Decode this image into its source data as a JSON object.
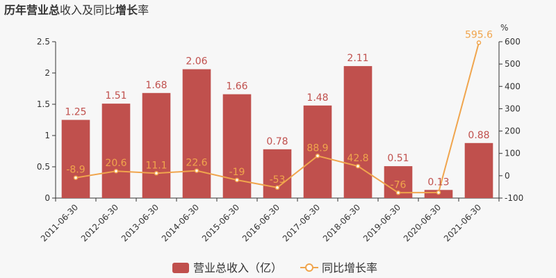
{
  "title": {
    "p1": "历年",
    "p2": "营业总",
    "p3": "收入及同比",
    "p4": "增长",
    "p5": "率"
  },
  "chart_data": {
    "type": "bar",
    "categories": [
      "2011-06-30",
      "2012-06-30",
      "2013-06-30",
      "2014-06-30",
      "2015-06-30",
      "2016-06-30",
      "2017-06-30",
      "2018-06-30",
      "2019-06-30",
      "2020-06-30",
      "2021-06-30"
    ],
    "series": [
      {
        "name": "营业总收入（亿）",
        "type": "bar",
        "axis": "left",
        "values": [
          1.25,
          1.51,
          1.68,
          2.06,
          1.66,
          0.78,
          1.48,
          2.11,
          0.51,
          0.13,
          0.88
        ]
      },
      {
        "name": "同比增长率",
        "type": "line",
        "axis": "right",
        "values": [
          -8.9,
          20.6,
          11.1,
          22.6,
          -19,
          -53,
          88.9,
          42.8,
          -76,
          -75,
          595.6
        ],
        "labels": [
          "-8.9",
          "20.6",
          "11.1",
          "22.6",
          "-19",
          "-53",
          "88.9",
          "42.8",
          "-76",
          "",
          "595.6"
        ]
      }
    ],
    "y_left": {
      "min": 0,
      "max": 2.5,
      "ticks": [
        "0",
        "0.5",
        "1",
        "1.5",
        "2",
        "2.5"
      ]
    },
    "y_right": {
      "min": -100,
      "max": 600,
      "ticks": [
        "-100",
        "0",
        "100",
        "200",
        "300",
        "400",
        "500",
        "600"
      ],
      "unit": "%"
    },
    "colors": {
      "bar": "#c0504d",
      "line": "#f0a54d"
    },
    "legend_position": "bottom-center"
  }
}
